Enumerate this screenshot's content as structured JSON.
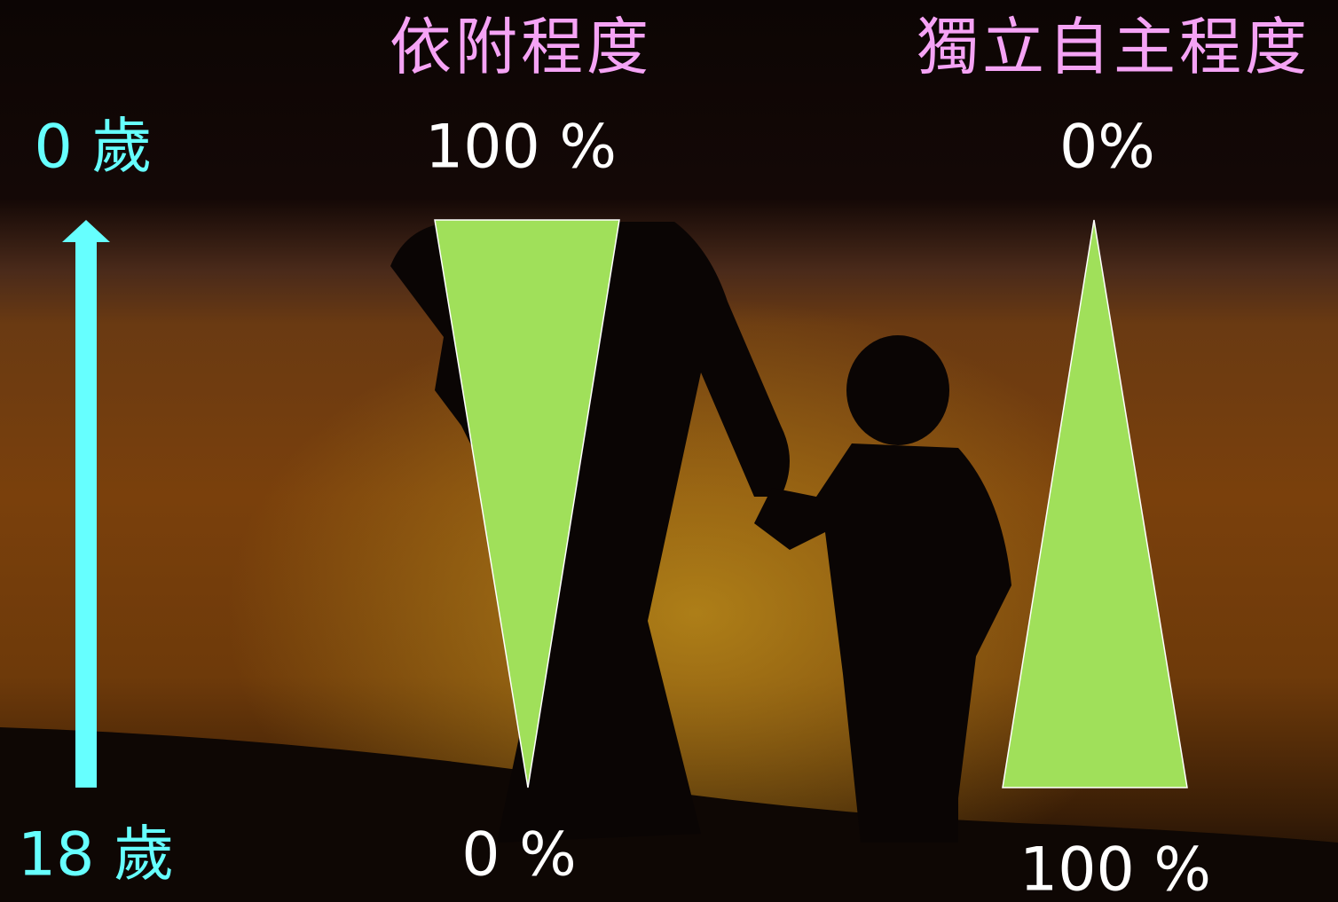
{
  "axis": {
    "top_label": "0 歲",
    "bottom_label": "18 歲"
  },
  "columns": [
    {
      "title": "依附程度",
      "top_label": "100 %",
      "bottom_label": "0 %"
    },
    {
      "title": "獨立自主程度",
      "top_label": "0%",
      "bottom_label": "100 %"
    }
  ]
}
